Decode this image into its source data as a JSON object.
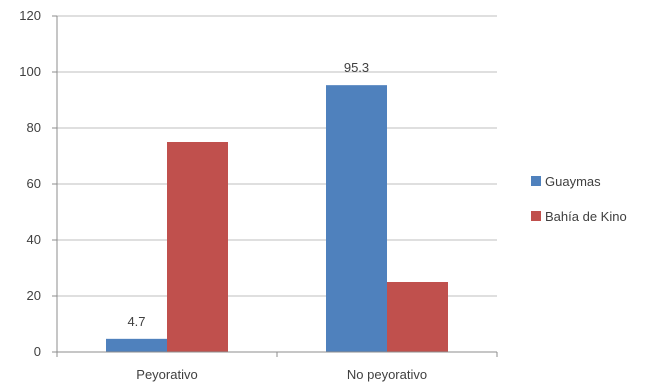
{
  "chart_data": {
    "type": "bar",
    "categories": [
      "Peyorativo",
      "No peyorativo"
    ],
    "series": [
      {
        "name": "Guaymas",
        "values": [
          4.7,
          95.3
        ],
        "color": "#4F81BD"
      },
      {
        "name": "Bahía de Kino",
        "values": [
          75,
          25
        ],
        "color": "#C0504D"
      }
    ],
    "data_labels": [
      {
        "series": 0,
        "index": 0,
        "text": "4.7"
      },
      {
        "series": 0,
        "index": 1,
        "text": "95.3"
      }
    ],
    "ylim": [
      0,
      120
    ],
    "yticks": [
      0,
      20,
      40,
      60,
      80,
      100,
      120
    ],
    "grid": true,
    "legend": "right",
    "title": "",
    "xlabel": "",
    "ylabel": ""
  }
}
